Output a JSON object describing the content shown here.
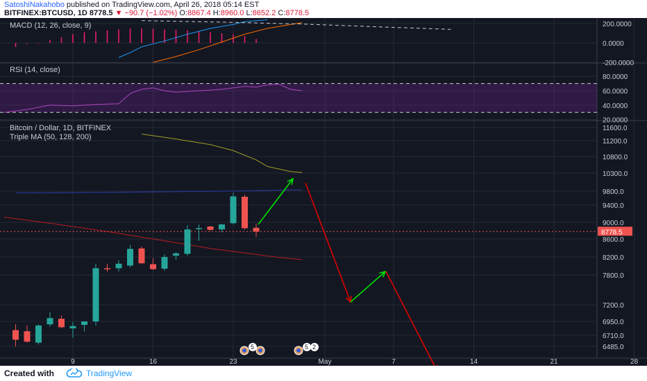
{
  "header": {
    "author": "SatoshiNakahobo",
    "published_text": " published on TradingView.com, April 26, 2018 05:14 EST",
    "symbol": "BITFINEX:BTCUSD, 1D",
    "last": "8778.5",
    "change": "−90.7 (−1.02%)",
    "o_label": "O:",
    "o_value": "8867.4",
    "h_label": "H:",
    "h_value": "8960.0",
    "l_label": "L:",
    "l_value": "8652.2",
    "c_label": "C:",
    "c_value": "8778.5"
  },
  "footer": {
    "created": "Created with",
    "brand": "TradingView"
  },
  "chart_data": {
    "type": "candlestick",
    "panes": [
      {
        "name": "macd",
        "title": "MACD (12, 26, close, 9)",
        "yticks": [
          "200.0000",
          "0.0000",
          "-200.0000"
        ]
      },
      {
        "name": "rsi",
        "title": "RSI (14, close)",
        "yticks": [
          "80.0000",
          "60.0000",
          "40.0000",
          "20.0000"
        ]
      },
      {
        "name": "price",
        "title": "Bitcoin / Dollar, 1D, BITFINEX",
        "subtitle": "Triple MA (50, 128, 200)",
        "yticks": [
          "11600.0",
          "11200.0",
          "10800.0",
          "10300.0",
          "9800.0",
          "9400.0",
          "9000.0",
          "8600.0",
          "8200.0",
          "7800.0",
          "7200.0",
          "6950.0",
          "6710.0",
          "6485.0"
        ],
        "last_price": "8778.5"
      }
    ],
    "x_ticks": [
      "9",
      "16",
      "23",
      "May",
      "7",
      "14",
      "21",
      "28"
    ],
    "candles": [
      {
        "date": "Apr 4",
        "open": 6800,
        "high": 6900,
        "low": 6480,
        "close": 6620
      },
      {
        "date": "Apr 5",
        "open": 6780,
        "high": 6880,
        "low": 6560,
        "close": 6580
      },
      {
        "date": "Apr 6",
        "open": 6560,
        "high": 6900,
        "low": 6520,
        "close": 6880
      },
      {
        "date": "Apr 7",
        "open": 6900,
        "high": 7090,
        "low": 6860,
        "close": 7000
      },
      {
        "date": "Apr 8",
        "open": 6990,
        "high": 7040,
        "low": 6830,
        "close": 6850
      },
      {
        "date": "Apr 9",
        "open": 6830,
        "high": 6940,
        "low": 6660,
        "close": 6870
      },
      {
        "date": "Apr 10",
        "open": 6890,
        "high": 6950,
        "low": 6780,
        "close": 6950
      },
      {
        "date": "Apr 11",
        "open": 6950,
        "high": 8050,
        "low": 6880,
        "close": 7950
      },
      {
        "date": "Apr 12",
        "open": 7950,
        "high": 8050,
        "low": 7870,
        "close": 7930
      },
      {
        "date": "Apr 13",
        "open": 7950,
        "high": 8130,
        "low": 7880,
        "close": 8050
      },
      {
        "date": "Apr 14",
        "open": 8010,
        "high": 8470,
        "low": 7970,
        "close": 8380
      },
      {
        "date": "Apr 15",
        "open": 8390,
        "high": 8430,
        "low": 8050,
        "close": 8060
      },
      {
        "date": "Apr 16",
        "open": 8040,
        "high": 8170,
        "low": 7920,
        "close": 7930
      },
      {
        "date": "Apr 17",
        "open": 7940,
        "high": 8260,
        "low": 7890,
        "close": 8200
      },
      {
        "date": "Apr 18",
        "open": 8230,
        "high": 8310,
        "low": 8140,
        "close": 8280
      },
      {
        "date": "Apr 19",
        "open": 8270,
        "high": 8930,
        "low": 8230,
        "close": 8830
      },
      {
        "date": "Apr 20",
        "open": 8840,
        "high": 8950,
        "low": 8560,
        "close": 8860
      },
      {
        "date": "Apr 21",
        "open": 8900,
        "high": 8910,
        "low": 8790,
        "close": 8820
      },
      {
        "date": "Apr 22",
        "open": 8830,
        "high": 8960,
        "low": 8760,
        "close": 8950
      },
      {
        "date": "Apr 23",
        "open": 8980,
        "high": 9760,
        "low": 8950,
        "close": 9650
      },
      {
        "date": "Apr 24",
        "open": 9640,
        "high": 9700,
        "low": 8830,
        "close": 8860
      },
      {
        "date": "Apr 25",
        "open": 8867.4,
        "high": 8960,
        "low": 8652.2,
        "close": 8778.5
      }
    ],
    "colors": {
      "up": "#26a69a",
      "down": "#ef5350",
      "macd_line": "#2196f3",
      "signal_line": "#ff6d00",
      "rsi_line": "#9c27b0",
      "ma50": "#c0392b",
      "ma128": "#283593",
      "ma200": "#9e9d24",
      "arrow_up": "#00e000",
      "arrow_down": "#e00000"
    }
  }
}
